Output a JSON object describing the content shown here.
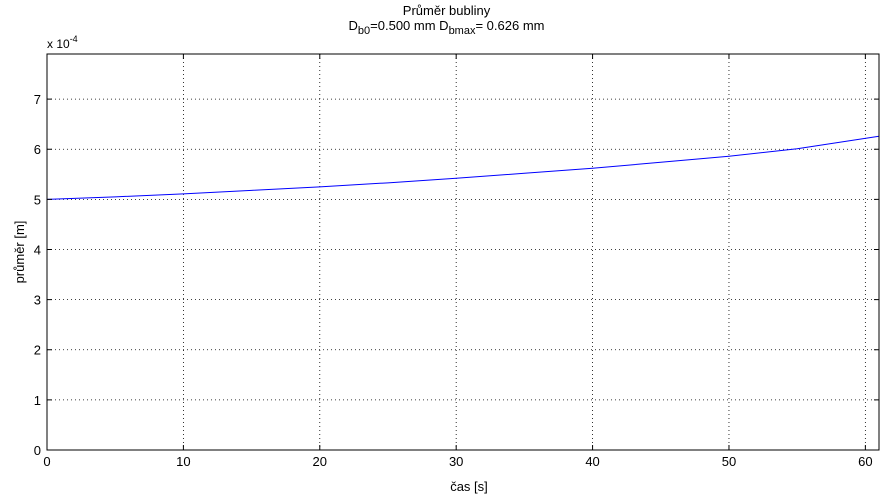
{
  "chart_data": {
    "type": "line",
    "title": "Průměr bubliny",
    "subtitle": {
      "d0_main": "D",
      "d0_sub": "b0",
      "d0_value": "=0.500 mm  ",
      "dmax_main": "D",
      "dmax_sub": "bmax",
      "dmax_value": "= 0.626 mm"
    },
    "xlabel": "čas [s]",
    "ylabel": "průměr [m]",
    "y_multiplier": {
      "base": "x 10",
      "exponent": "-4"
    },
    "xlim": [
      0,
      61
    ],
    "ylim": [
      0,
      7.9
    ],
    "x_ticks": [
      0,
      10,
      20,
      30,
      40,
      50,
      60
    ],
    "y_ticks": [
      0,
      1,
      2,
      3,
      4,
      5,
      6,
      7
    ],
    "grid": true,
    "series": [
      {
        "color": "#0000ff",
        "x": [
          0,
          5,
          10,
          15,
          20,
          25,
          30,
          35,
          40,
          45,
          50,
          55,
          61
        ],
        "y": [
          5.0,
          5.05,
          5.11,
          5.18,
          5.25,
          5.33,
          5.42,
          5.52,
          5.62,
          5.74,
          5.86,
          6.01,
          6.26
        ]
      }
    ]
  }
}
